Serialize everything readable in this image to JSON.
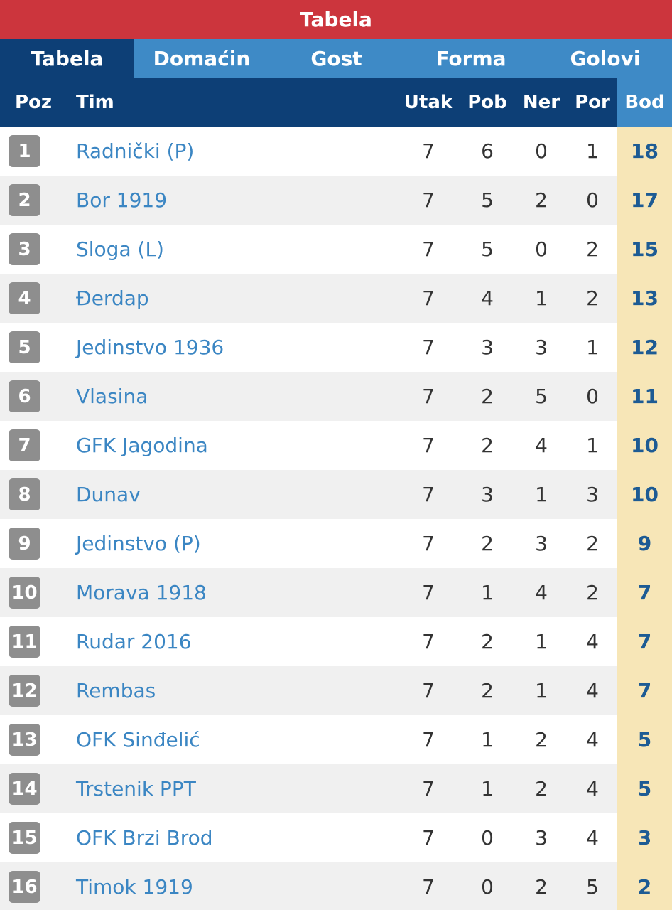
{
  "title": "Tabela",
  "tabs": [
    {
      "label": "Tabela",
      "active": true
    },
    {
      "label": "Domaćin",
      "active": false
    },
    {
      "label": "Gost",
      "active": false
    },
    {
      "label": "Forma",
      "active": false
    },
    {
      "label": "Golovi",
      "active": false
    }
  ],
  "columns": {
    "poz": "Poz",
    "tim": "Tim",
    "utak": "Utak",
    "pob": "Pob",
    "ner": "Ner",
    "por": "Por",
    "bod": "Bod"
  },
  "colors": {
    "title_bg": "#cc353d",
    "tab_bg": "#3e8ac6",
    "tab_active_bg": "#0d3f76",
    "badge_bg": "#8e8e8e",
    "points_bg": "#f7e6b7",
    "team_link": "#3b86c3"
  },
  "rows": [
    {
      "pos": "1",
      "team": "Radnički (P)",
      "utak": "7",
      "pob": "6",
      "ner": "0",
      "por": "1",
      "bod": "18"
    },
    {
      "pos": "2",
      "team": "Bor 1919",
      "utak": "7",
      "pob": "5",
      "ner": "2",
      "por": "0",
      "bod": "17"
    },
    {
      "pos": "3",
      "team": "Sloga (L)",
      "utak": "7",
      "pob": "5",
      "ner": "0",
      "por": "2",
      "bod": "15"
    },
    {
      "pos": "4",
      "team": "Đerdap",
      "utak": "7",
      "pob": "4",
      "ner": "1",
      "por": "2",
      "bod": "13"
    },
    {
      "pos": "5",
      "team": "Jedinstvo 1936",
      "utak": "7",
      "pob": "3",
      "ner": "3",
      "por": "1",
      "bod": "12"
    },
    {
      "pos": "6",
      "team": "Vlasina",
      "utak": "7",
      "pob": "2",
      "ner": "5",
      "por": "0",
      "bod": "11"
    },
    {
      "pos": "7",
      "team": "GFK Jagodina",
      "utak": "7",
      "pob": "2",
      "ner": "4",
      "por": "1",
      "bod": "10"
    },
    {
      "pos": "8",
      "team": "Dunav",
      "utak": "7",
      "pob": "3",
      "ner": "1",
      "por": "3",
      "bod": "10"
    },
    {
      "pos": "9",
      "team": "Jedinstvo (P)",
      "utak": "7",
      "pob": "2",
      "ner": "3",
      "por": "2",
      "bod": "9"
    },
    {
      "pos": "10",
      "team": "Morava 1918",
      "utak": "7",
      "pob": "1",
      "ner": "4",
      "por": "2",
      "bod": "7"
    },
    {
      "pos": "11",
      "team": "Rudar 2016",
      "utak": "7",
      "pob": "2",
      "ner": "1",
      "por": "4",
      "bod": "7"
    },
    {
      "pos": "12",
      "team": "Rembas",
      "utak": "7",
      "pob": "2",
      "ner": "1",
      "por": "4",
      "bod": "7"
    },
    {
      "pos": "13",
      "team": "OFK Sinđelić",
      "utak": "7",
      "pob": "1",
      "ner": "2",
      "por": "4",
      "bod": "5"
    },
    {
      "pos": "14",
      "team": "Trstenik PPT",
      "utak": "7",
      "pob": "1",
      "ner": "2",
      "por": "4",
      "bod": "5"
    },
    {
      "pos": "15",
      "team": "OFK Brzi Brod",
      "utak": "7",
      "pob": "0",
      "ner": "3",
      "por": "4",
      "bod": "3"
    },
    {
      "pos": "16",
      "team": "Timok 1919",
      "utak": "7",
      "pob": "0",
      "ner": "2",
      "por": "5",
      "bod": "2"
    }
  ]
}
